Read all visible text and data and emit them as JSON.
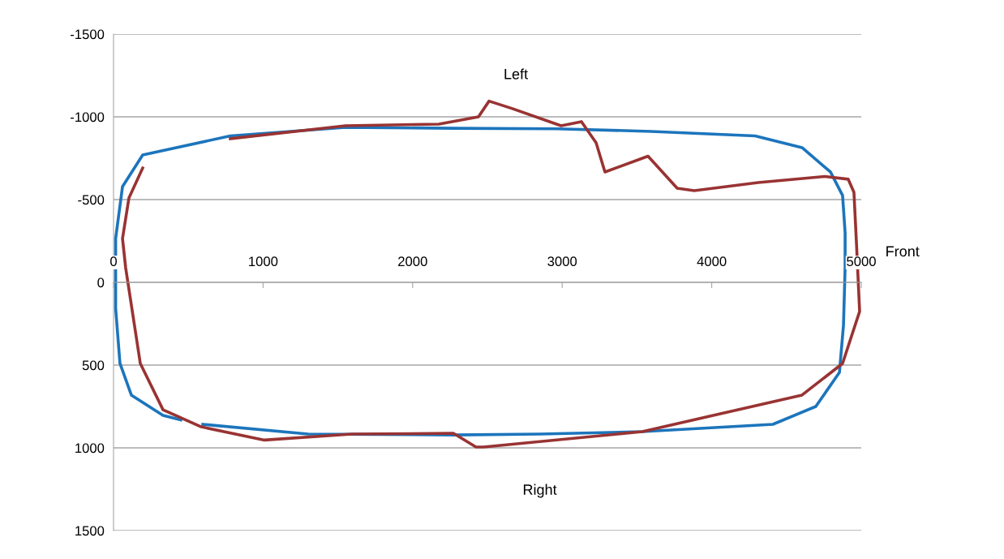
{
  "chart_data": {
    "type": "line",
    "xlim": [
      0,
      5000
    ],
    "ylim": [
      1500,
      -1500
    ],
    "xticks": [
      0,
      1000,
      2000,
      3000,
      4000,
      5000
    ],
    "yticks": [
      -1500,
      -1000,
      -500,
      0,
      500,
      1000,
      1500
    ],
    "grid": "y",
    "marker": "none",
    "line_style": "solid",
    "series": [
      {
        "color": "#1c75bc",
        "x": [
          597,
          1302,
          2278,
          2852,
          3536,
          4409,
          4696,
          4854,
          4881,
          4892,
          4892,
          4875,
          4794,
          4604,
          4290,
          3595,
          2966,
          2278,
          1551,
          781,
          195,
          60,
          14,
          14,
          43,
          119,
          331,
          450
        ],
        "values": [
          858,
          917,
          922,
          917,
          902,
          858,
          750,
          544,
          260,
          -88,
          -300,
          -525,
          -667,
          -814,
          -885,
          -912,
          -928,
          -931,
          -936,
          -885,
          -770,
          -578,
          -265,
          157,
          490,
          681,
          804,
          831
        ]
      },
      {
        "color": "#993333",
        "x": [
          195,
          103,
          60,
          81,
          179,
          331,
          586,
          1009,
          1594,
          2272,
          2424,
          2473,
          3536,
          4604,
          4875,
          4989,
          4968,
          4951,
          4913,
          4756,
          4311,
          3883,
          3769,
          3574,
          3286,
          3227,
          3129,
          2993,
          2663,
          2511,
          2440,
          2175,
          1551,
          781
        ],
        "values": [
          -691,
          -510,
          -265,
          -88,
          490,
          770,
          873,
          953,
          917,
          912,
          995,
          995,
          902,
          681,
          490,
          176,
          -235,
          -544,
          -623,
          -640,
          -603,
          -554,
          -569,
          -762,
          -667,
          -843,
          -971,
          -946,
          -1051,
          -1095,
          -1000,
          -956,
          -946,
          -868
        ]
      }
    ],
    "annotations": [
      "Left",
      "Right",
      "Front"
    ]
  }
}
